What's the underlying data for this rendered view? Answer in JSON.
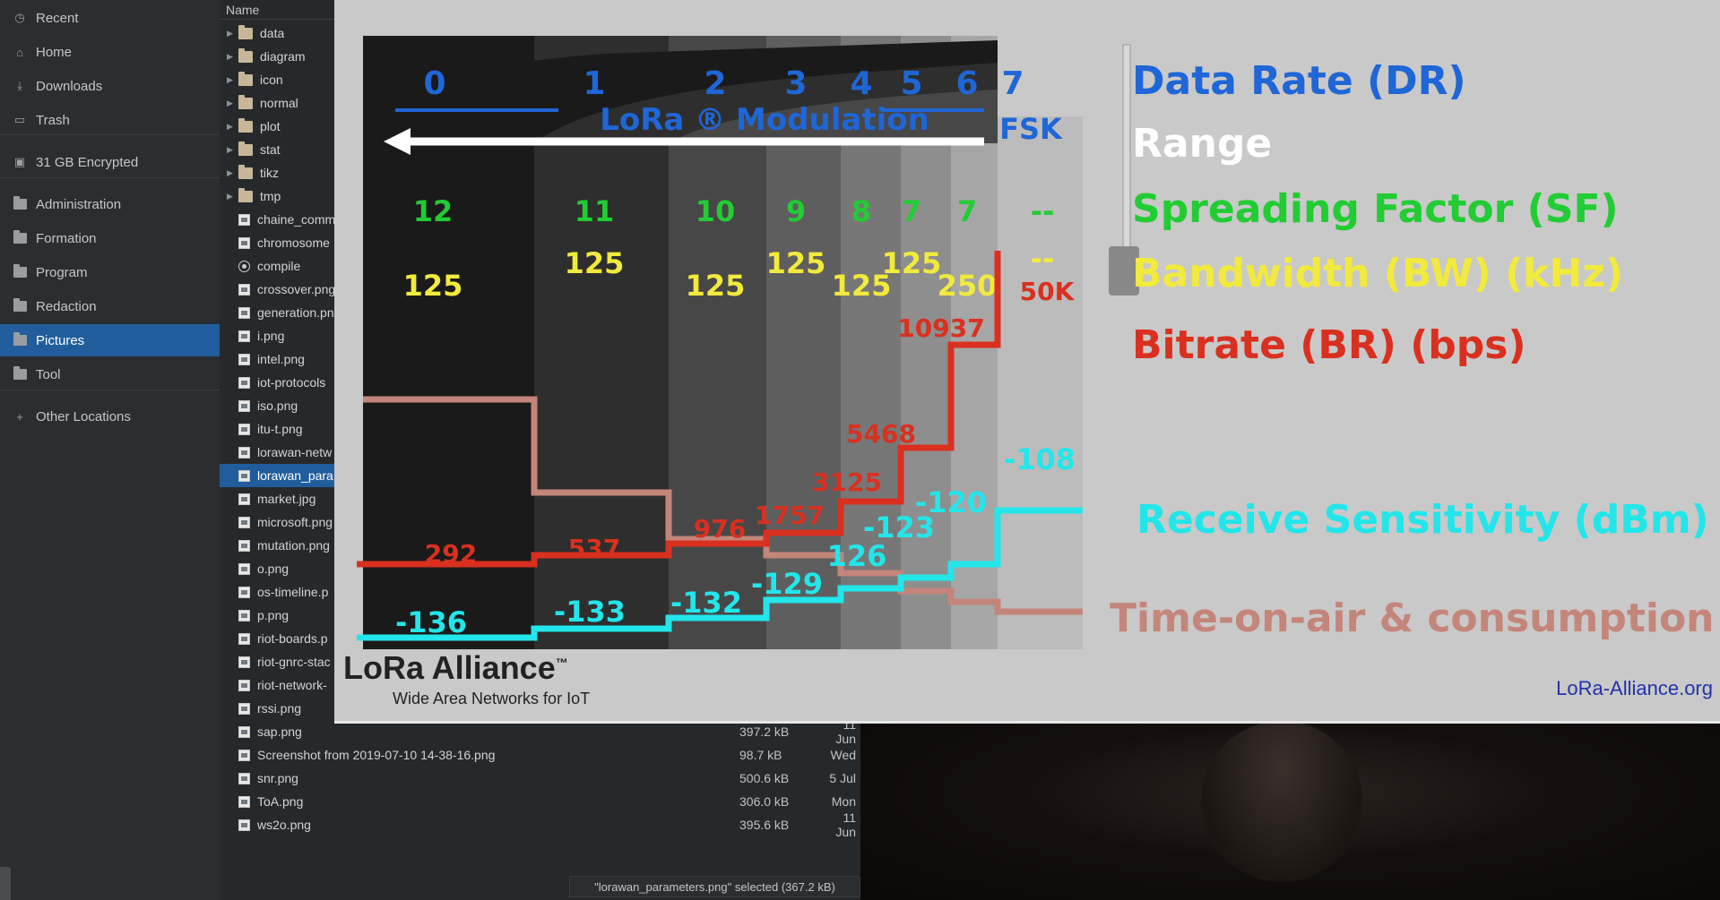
{
  "sidebar": {
    "items": [
      {
        "label": "Recent",
        "icon": "clock-icon",
        "glyph": "◷"
      },
      {
        "label": "Home",
        "icon": "home-icon",
        "glyph": "⌂"
      },
      {
        "label": "Downloads",
        "icon": "download-icon",
        "glyph": "⤓"
      },
      {
        "label": "Trash",
        "icon": "trash-icon",
        "glyph": "▭"
      },
      {
        "label": "31 GB Encrypted",
        "icon": "drive-icon",
        "glyph": "▣"
      },
      {
        "label": "Administration",
        "icon": "folder-icon",
        "glyph": ""
      },
      {
        "label": "Formation",
        "icon": "folder-icon",
        "glyph": ""
      },
      {
        "label": "Program",
        "icon": "folder-icon",
        "glyph": ""
      },
      {
        "label": "Redaction",
        "icon": "folder-icon",
        "glyph": ""
      },
      {
        "label": "Pictures",
        "icon": "folder-icon",
        "glyph": ""
      },
      {
        "label": "Tool",
        "icon": "folder-icon",
        "glyph": ""
      },
      {
        "label": "Other Locations",
        "icon": "plus-icon",
        "glyph": "+"
      }
    ],
    "selected": "Pictures"
  },
  "filelist": {
    "column_name": "Name",
    "rows": [
      {
        "name": "data",
        "type": "folder"
      },
      {
        "name": "diagram",
        "type": "folder"
      },
      {
        "name": "icon",
        "type": "folder"
      },
      {
        "name": "normal",
        "type": "folder"
      },
      {
        "name": "plot",
        "type": "folder"
      },
      {
        "name": "stat",
        "type": "folder"
      },
      {
        "name": "tikz",
        "type": "folder"
      },
      {
        "name": "tmp",
        "type": "folder"
      },
      {
        "name": "chaine_comm",
        "type": "image"
      },
      {
        "name": "chromosome",
        "type": "image"
      },
      {
        "name": "compile",
        "type": "exec"
      },
      {
        "name": "crossover.png",
        "type": "image"
      },
      {
        "name": "generation.pn",
        "type": "image"
      },
      {
        "name": "i.png",
        "type": "image"
      },
      {
        "name": "intel.png",
        "type": "image"
      },
      {
        "name": "iot-protocols",
        "type": "image"
      },
      {
        "name": "iso.png",
        "type": "image"
      },
      {
        "name": "itu-t.png",
        "type": "image"
      },
      {
        "name": "lorawan-netw",
        "type": "image"
      },
      {
        "name": "lorawan_para",
        "type": "image",
        "selected": true
      },
      {
        "name": "market.jpg",
        "type": "image"
      },
      {
        "name": "microsoft.png",
        "type": "image"
      },
      {
        "name": "mutation.png",
        "type": "image"
      },
      {
        "name": "o.png",
        "type": "image"
      },
      {
        "name": "os-timeline.p",
        "type": "image"
      },
      {
        "name": "p.png",
        "type": "image"
      },
      {
        "name": "riot-boards.p",
        "type": "image"
      },
      {
        "name": "riot-gnrc-stac",
        "type": "image"
      },
      {
        "name": "riot-network-",
        "type": "image"
      },
      {
        "name": "rssi.png",
        "type": "image"
      },
      {
        "name": "sap.png",
        "type": "image",
        "size": "397.2 kB",
        "date": "11 Jun"
      },
      {
        "name": "Screenshot from 2019-07-10 14-38-16.png",
        "type": "image",
        "size": "98.7 kB",
        "date": "Wed"
      },
      {
        "name": "snr.png",
        "type": "image",
        "size": "500.6 kB",
        "date": "5 Jul"
      },
      {
        "name": "ToA.png",
        "type": "image",
        "size": "306.0 kB",
        "date": "Mon"
      },
      {
        "name": "ws2o.png",
        "type": "image",
        "size": "395.6 kB",
        "date": "11 Jun"
      }
    ],
    "status": "\"lorawan_parameters.png\" selected  (367.2 kB)"
  },
  "viewer": {
    "dr_labels": [
      "0",
      "1",
      "2",
      "3",
      "4",
      "5",
      "6",
      "7"
    ],
    "lora_modulation": "LoRa ® Modulation",
    "fsk": "FSK",
    "sf_values": [
      "12",
      "11",
      "10",
      "9",
      "8",
      "7",
      "7",
      "--"
    ],
    "bw_values": [
      "125",
      "125",
      "125",
      "125",
      "125",
      "125",
      "250",
      "--"
    ],
    "bitrate_values": [
      "292",
      "537",
      "976",
      "1757",
      "3125",
      "5468",
      "10937",
      "50K"
    ],
    "sensitivity_values": [
      "-136",
      "-133",
      "-132",
      "-129",
      "126",
      "-123",
      "-120",
      "-108"
    ],
    "legend": {
      "dr": "Data Rate (DR)",
      "range": "Range",
      "sf": "Spreading Factor (SF)",
      "bw": "Bandwidth (BW) (kHz)",
      "br": "Bitrate (BR) (bps)",
      "sens": "Receive Sensitivity (dBm)",
      "toa": "Time-on-air & consumption"
    },
    "logo": "LoRa Alliance",
    "logo_tm": "™",
    "logo_sub": "Wide Area Networks for IoT",
    "site": "LoRa-Alliance.org",
    "colors": {
      "blue": "#1f66d6",
      "green": "#22cc33",
      "yellow": "#f2ea3c",
      "red": "#d9301f",
      "cyan": "#22e6ea",
      "pink": "#c4857a"
    }
  }
}
